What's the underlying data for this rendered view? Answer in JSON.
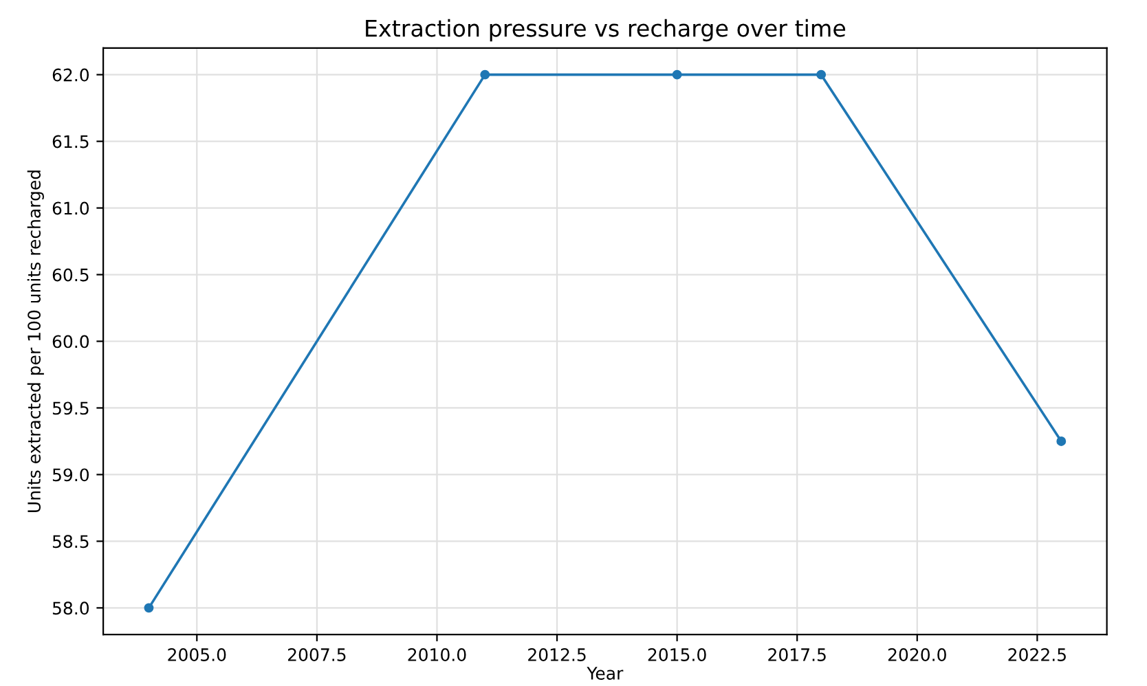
{
  "chart_data": {
    "type": "line",
    "title": "Extraction pressure vs recharge over time",
    "xlabel": "Year",
    "ylabel": "Units extracted per 100 units recharged",
    "x": [
      2004,
      2011,
      2015,
      2018,
      2023
    ],
    "series": [
      {
        "color": "#1f77b4",
        "values": [
          58.0,
          62.0,
          62.0,
          62.0,
          59.25
        ]
      }
    ],
    "xlim": [
      2003.05,
      2023.95
    ],
    "ylim": [
      57.8,
      62.2
    ],
    "xticks": [
      {
        "value": 2005,
        "label": "2005.0"
      },
      {
        "value": 2007.5,
        "label": "2007.5"
      },
      {
        "value": 2010,
        "label": "2010.0"
      },
      {
        "value": 2012.5,
        "label": "2012.5"
      },
      {
        "value": 2015,
        "label": "2015.0"
      },
      {
        "value": 2017.5,
        "label": "2017.5"
      },
      {
        "value": 2020,
        "label": "2020.0"
      },
      {
        "value": 2022.5,
        "label": "2022.5"
      }
    ],
    "yticks": [
      {
        "value": 58,
        "label": "58.0"
      },
      {
        "value": 58.5,
        "label": "58.5"
      },
      {
        "value": 59,
        "label": "59.0"
      },
      {
        "value": 59.5,
        "label": "59.5"
      },
      {
        "value": 60,
        "label": "60.0"
      },
      {
        "value": 60.5,
        "label": "60.5"
      },
      {
        "value": 61,
        "label": "61.0"
      },
      {
        "value": 61.5,
        "label": "61.5"
      },
      {
        "value": 62,
        "label": "62.0"
      }
    ],
    "grid": true,
    "marker": "circle",
    "line_style": "solid",
    "legend": false
  }
}
